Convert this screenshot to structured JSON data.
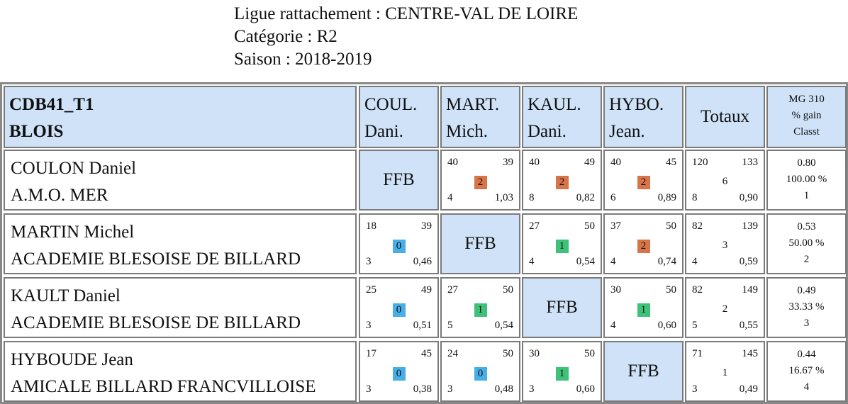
{
  "header": {
    "ligue": "Ligue rattachement : CENTRE-VAL DE LOIRE",
    "categorie": "Catégorie : R2",
    "saison": "Saison : 2018-2019"
  },
  "table": {
    "team_line1": "CDB41_T1",
    "team_line2": "BLOIS",
    "columns": [
      {
        "l1": "COUL.",
        "l2": "Dani."
      },
      {
        "l1": "MART.",
        "l2": "Mich."
      },
      {
        "l1": "KAUL.",
        "l2": "Dani."
      },
      {
        "l1": "HYBO.",
        "l2": "Jean."
      }
    ],
    "totaux_label": "Totaux",
    "mg_label1": "MG 310",
    "mg_label2": "% gain",
    "mg_label3": "Classt",
    "ffb_label": "FFB",
    "rows": [
      {
        "name": "COULON Daniel",
        "club": "A.M.O. MER",
        "cells": [
          null,
          {
            "tl": "40",
            "tr": "39",
            "badge": "2",
            "bl": "4",
            "br": "1,03"
          },
          {
            "tl": "40",
            "tr": "49",
            "badge": "2",
            "bl": "8",
            "br": "0,82"
          },
          {
            "tl": "40",
            "tr": "45",
            "badge": "2",
            "bl": "6",
            "br": "0,89"
          }
        ],
        "total": {
          "tl": "120",
          "tr": "133",
          "mid": "6",
          "bl": "8",
          "br": "0,90"
        },
        "mg": {
          "avg": "0.80",
          "pct": "100.00 %",
          "rank": "1"
        }
      },
      {
        "name": "MARTIN Michel",
        "club": "ACADEMIE BLESOISE DE BILLARD",
        "cells": [
          {
            "tl": "18",
            "tr": "39",
            "badge": "0",
            "bl": "3",
            "br": "0,46"
          },
          null,
          {
            "tl": "27",
            "tr": "50",
            "badge": "1",
            "bl": "4",
            "br": "0,54"
          },
          {
            "tl": "37",
            "tr": "50",
            "badge": "2",
            "bl": "4",
            "br": "0,74"
          }
        ],
        "total": {
          "tl": "82",
          "tr": "139",
          "mid": "3",
          "bl": "4",
          "br": "0,59"
        },
        "mg": {
          "avg": "0.53",
          "pct": "50.00 %",
          "rank": "2"
        }
      },
      {
        "name": "KAULT Daniel",
        "club": "ACADEMIE BLESOISE DE BILLARD",
        "cells": [
          {
            "tl": "25",
            "tr": "49",
            "badge": "0",
            "bl": "3",
            "br": "0,51"
          },
          {
            "tl": "27",
            "tr": "50",
            "badge": "1",
            "bl": "5",
            "br": "0,54"
          },
          null,
          {
            "tl": "30",
            "tr": "50",
            "badge": "1",
            "bl": "4",
            "br": "0,60"
          }
        ],
        "total": {
          "tl": "82",
          "tr": "149",
          "mid": "2",
          "bl": "5",
          "br": "0,55"
        },
        "mg": {
          "avg": "0.49",
          "pct": "33.33 %",
          "rank": "3"
        }
      },
      {
        "name": "HYBOUDE Jean",
        "club": "AMICALE BILLARD FRANCVILLOISE",
        "cells": [
          {
            "tl": "17",
            "tr": "45",
            "badge": "0",
            "bl": "3",
            "br": "0,38"
          },
          {
            "tl": "24",
            "tr": "50",
            "badge": "0",
            "bl": "3",
            "br": "0,48"
          },
          {
            "tl": "30",
            "tr": "50",
            "badge": "1",
            "bl": "3",
            "br": "0,60"
          },
          null
        ],
        "total": {
          "tl": "71",
          "tr": "145",
          "mid": "1",
          "bl": "3",
          "br": "0,49"
        },
        "mg": {
          "avg": "0.44",
          "pct": "16.67 %",
          "rank": "4"
        }
      }
    ]
  },
  "colors": {
    "header_blue": "#cfe2f8",
    "badge_0": "#48aee8",
    "badge_1": "#3ec27a",
    "badge_2": "#d87548"
  }
}
